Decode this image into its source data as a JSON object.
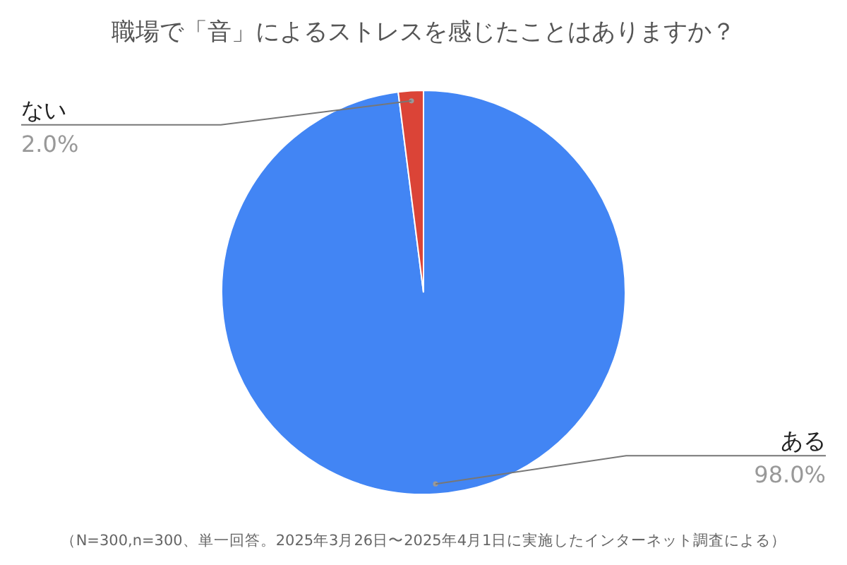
{
  "chart_data": {
    "type": "pie",
    "title": "職場で「音」によるストレスを感じたことはありますか？",
    "categories": [
      "ある",
      "ない"
    ],
    "values": [
      98.0,
      2.0
    ],
    "colors": [
      "#4285f4",
      "#db4437"
    ],
    "value_labels": [
      "98.0%",
      "2.0%"
    ],
    "annotations": [
      "（N=300,n=300、単一回答。2025年3月26日〜2025年4月1日に実施したインターネット調査による）"
    ]
  }
}
